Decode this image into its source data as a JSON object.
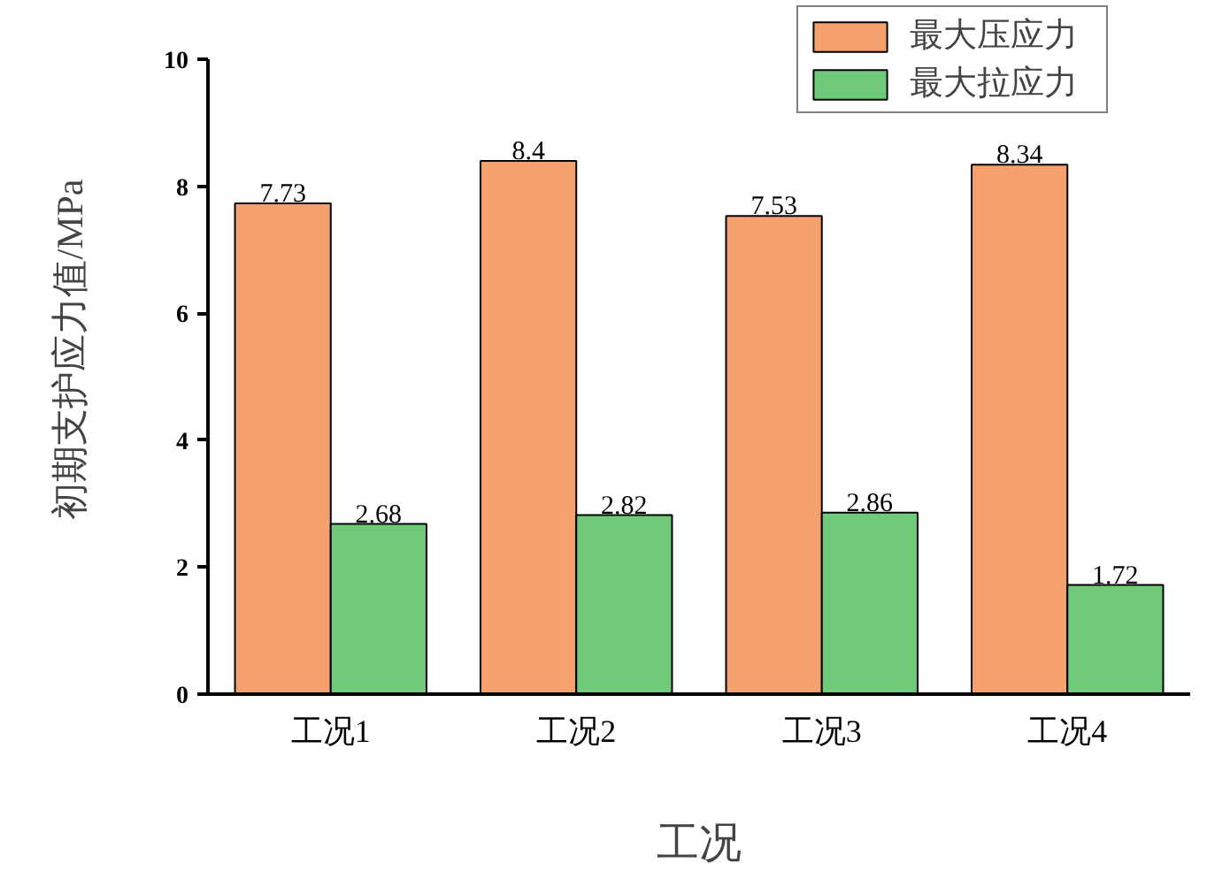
{
  "chart_data": {
    "type": "bar",
    "xlabel": "工况",
    "ylabel": "初期支护应力值/MPa",
    "categories": [
      "工况1",
      "工况2",
      "工况3",
      "工况4"
    ],
    "series": [
      {
        "name": "最大压应力",
        "color": "#f4a16e",
        "values": [
          7.73,
          8.4,
          7.53,
          8.34
        ]
      },
      {
        "name": "最大拉应力",
        "color": "#6fcb79",
        "values": [
          2.68,
          2.82,
          2.86,
          1.72
        ]
      }
    ],
    "ylim": [
      0,
      10
    ],
    "yticks": [
      0,
      2,
      4,
      6,
      8,
      10
    ],
    "data_labels": true,
    "legend": "top right",
    "grid": false
  }
}
